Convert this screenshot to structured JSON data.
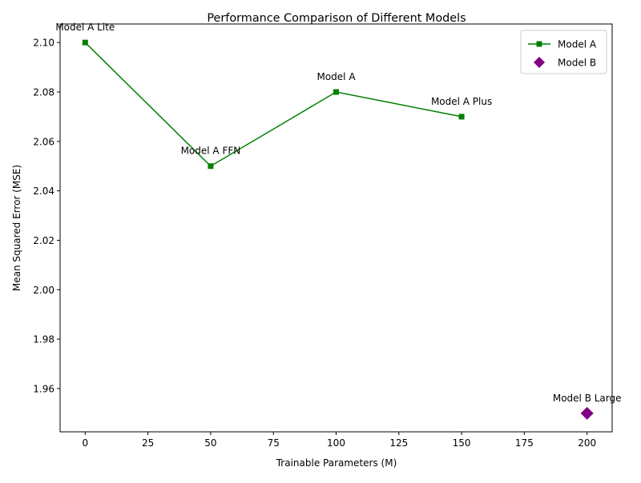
{
  "chart_data": {
    "type": "scatter",
    "title": "Performance Comparison of Different Models",
    "xlabel": "Trainable Parameters (M)",
    "ylabel": "Mean Squared Error (MSE)",
    "xlim": [
      -10,
      210
    ],
    "ylim": [
      1.9425,
      2.1075
    ],
    "x_ticks": [
      0,
      25,
      50,
      75,
      100,
      125,
      150,
      175,
      200
    ],
    "y_ticks": [
      1.96,
      1.98,
      2.0,
      2.02,
      2.04,
      2.06,
      2.08,
      2.1
    ],
    "grid": false,
    "legend_position": "top-right",
    "series": [
      {
        "name": "Model A",
        "style": "line-with-square-markers",
        "color": "#008000",
        "points": [
          {
            "x": 0,
            "y": 2.1,
            "label": "Model A Lite"
          },
          {
            "x": 50,
            "y": 2.05,
            "label": "Model A FFN"
          },
          {
            "x": 100,
            "y": 2.08,
            "label": "Model A"
          },
          {
            "x": 150,
            "y": 2.07,
            "label": "Model A Plus"
          }
        ]
      },
      {
        "name": "Model B",
        "style": "diamond-marker",
        "color": "#800080",
        "points": [
          {
            "x": 200,
            "y": 1.95,
            "label": "Model B Large"
          }
        ]
      }
    ]
  }
}
